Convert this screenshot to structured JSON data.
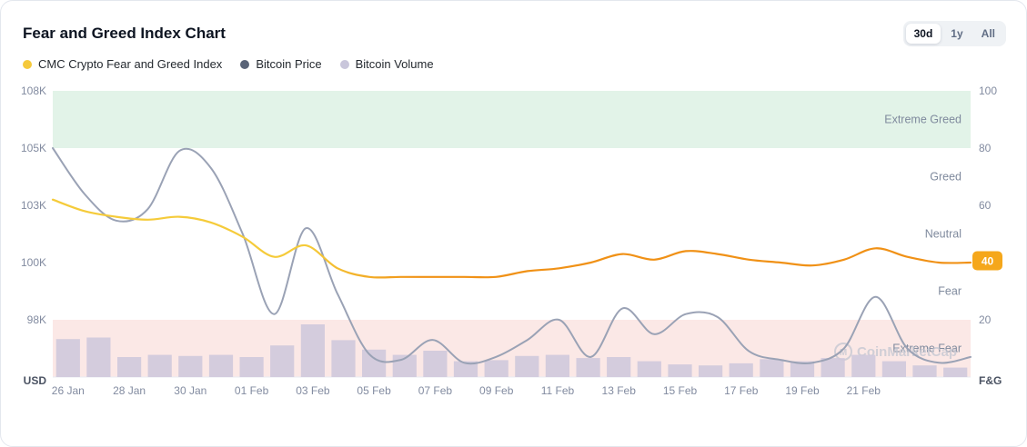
{
  "header": {
    "title": "Fear and Greed Index Chart",
    "ranges": [
      {
        "label": "30d",
        "selected": true
      },
      {
        "label": "1y",
        "selected": false
      },
      {
        "label": "All",
        "selected": false
      }
    ]
  },
  "legend": [
    {
      "label": "CMC Crypto Fear and Greed Index",
      "color": "#F5C93B"
    },
    {
      "label": "Bitcoin Price",
      "color": "#5A6478"
    },
    {
      "label": "Bitcoin Volume",
      "color": "#C9C6DB"
    }
  ],
  "watermark": {
    "text": "CoinMarketCap"
  },
  "chart_data": {
    "type": "line",
    "x": [
      "26 Jan",
      "27 Jan",
      "28 Jan",
      "29 Jan",
      "30 Jan",
      "31 Jan",
      "01 Feb",
      "02 Feb",
      "03 Feb",
      "04 Feb",
      "05 Feb",
      "06 Feb",
      "07 Feb",
      "08 Feb",
      "09 Feb",
      "10 Feb",
      "11 Feb",
      "12 Feb",
      "13 Feb",
      "14 Feb",
      "15 Feb",
      "16 Feb",
      "17 Feb",
      "18 Feb",
      "19 Feb",
      "20 Feb",
      "21 Feb",
      "22 Feb",
      "23 Feb",
      "24 Feb"
    ],
    "x_tick_labels": [
      "26 Jan",
      "28 Jan",
      "30 Jan",
      "01 Feb",
      "03 Feb",
      "05 Feb",
      "07 Feb",
      "09 Feb",
      "11 Feb",
      "13 Feb",
      "15 Feb",
      "17 Feb",
      "19 Feb",
      "21 Feb"
    ],
    "series": [
      {
        "name": "CMC Crypto Fear and Greed Index",
        "type": "line",
        "axis": "fng",
        "color_start": "#F5CB3A",
        "color_end": "#F09116",
        "values": [
          62,
          58,
          56,
          55,
          56,
          54,
          49,
          42,
          46,
          38,
          35,
          35,
          35,
          35,
          35,
          37,
          38,
          40,
          43,
          41,
          44,
          43,
          41,
          40,
          39,
          41,
          45,
          42,
          40,
          40
        ]
      },
      {
        "name": "Bitcoin Price",
        "type": "line",
        "axis": "price",
        "unit": "K USD",
        "color": "#9AA2B5",
        "values": [
          105.0,
          103.4,
          102.2,
          102.8,
          104.9,
          104.3,
          101.5,
          98.2,
          101.8,
          98.9,
          96.8,
          96.6,
          97.3,
          96.5,
          96.7,
          97.3,
          98.0,
          96.7,
          98.4,
          97.5,
          98.2,
          98.1,
          96.9,
          96.6,
          96.5,
          97.0,
          98.8,
          97.0,
          96.5,
          96.7
        ]
      },
      {
        "name": "Bitcoin Volume",
        "type": "bar",
        "axis": "volume",
        "color": "#CFC9DC",
        "values_relative": [
          0.72,
          0.75,
          0.38,
          0.42,
          0.4,
          0.42,
          0.38,
          0.6,
          1.0,
          0.7,
          0.52,
          0.42,
          0.5,
          0.3,
          0.32,
          0.4,
          0.42,
          0.36,
          0.38,
          0.3,
          0.24,
          0.22,
          0.26,
          0.34,
          0.3,
          0.36,
          0.42,
          0.3,
          0.22,
          0.18
        ]
      }
    ],
    "fng_axis": {
      "label": "F&G",
      "ticks": [
        100,
        80,
        60,
        40,
        20
      ],
      "range": [
        0,
        100
      ],
      "current_value": 40,
      "badge_color": "#F5A71B"
    },
    "price_axis": {
      "label": "USD",
      "ticks": [
        "108K",
        "105K",
        "103K",
        "100K",
        "98K"
      ],
      "tick_values": [
        108,
        105,
        103,
        100,
        98
      ],
      "range_bottom": 96
    },
    "zones": [
      {
        "label": "Extreme Greed",
        "from": 80,
        "to": 100,
        "band_color": "#E2F3E8"
      },
      {
        "label": "Greed",
        "from": 60,
        "to": 80,
        "band_color": ""
      },
      {
        "label": "Neutral",
        "from": 40,
        "to": 60,
        "band_color": ""
      },
      {
        "label": "Fear",
        "from": 20,
        "to": 40,
        "band_color": ""
      },
      {
        "label": "Extreme Fear",
        "from": 0,
        "to": 20,
        "band_color": "#FBE8E6"
      }
    ]
  }
}
